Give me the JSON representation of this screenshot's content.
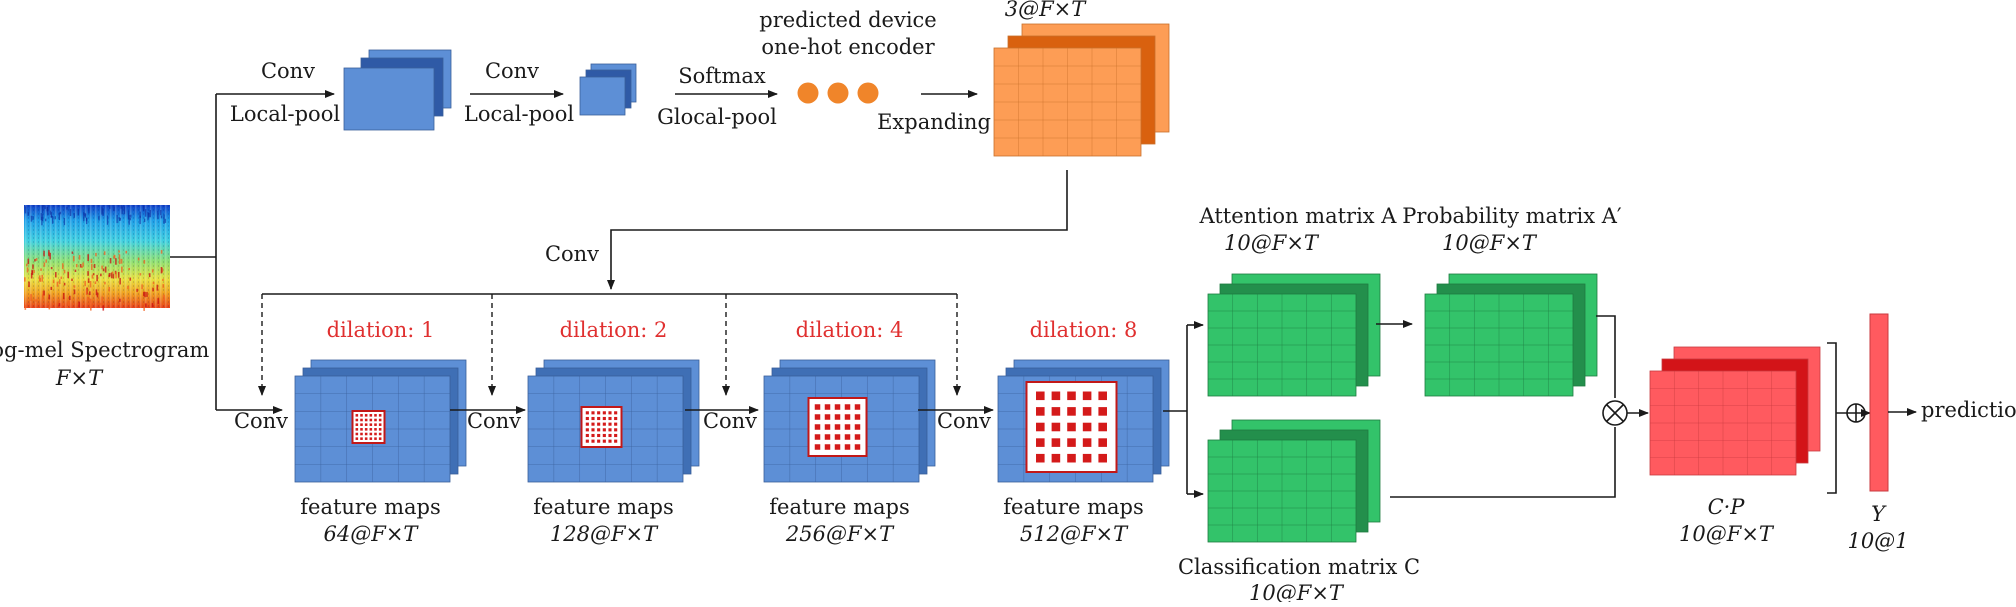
{
  "colors": {
    "blue": "#5d8fd6",
    "blue_dark": "#3f6fb5",
    "orange": "#fd9d55",
    "orange_dark": "#d9610f",
    "green": "#33c36a",
    "green_dark": "#238f4c",
    "red": "#ff5a5f",
    "red_dark": "#d31418",
    "dilation_text": "#e03030"
  },
  "input": {
    "label": "log-mel Spectrogram",
    "dims": "F×T"
  },
  "top_branch": {
    "conv1": "Conv",
    "pool1": "Local-pool",
    "conv2": "Conv",
    "pool2": "Local-pool",
    "softmax": "Softmax",
    "glocal": "Glocal-pool",
    "device_line1": "predicted device",
    "device_line2": "one-hot encoder",
    "expanding": "Expanding",
    "orange_dims": "3@F×T",
    "conv_down": "Conv"
  },
  "stages": [
    {
      "conv": "Conv",
      "dilation": "dilation: 1",
      "caption": "feature maps",
      "dims": "64@F×T"
    },
    {
      "conv": "Conv",
      "dilation": "dilation: 2",
      "caption": "feature maps",
      "dims": "128@F×T"
    },
    {
      "conv": "Conv",
      "dilation": "dilation: 4",
      "caption": "feature maps",
      "dims": "256@F×T"
    },
    {
      "conv": "Conv",
      "dilation": "dilation: 8",
      "caption": "feature maps",
      "dims": "512@F×T"
    }
  ],
  "attention": {
    "label": "Attention matrix A",
    "dims": "10@F×T"
  },
  "probability": {
    "label": "Probability matrix A′",
    "dims": "10@F×T"
  },
  "classification": {
    "label": "Classification matrix C",
    "dims": "10@F×T"
  },
  "product": {
    "label": "C·P",
    "dims": "10@F×T"
  },
  "output": {
    "label": "Y",
    "dims": "10@1",
    "prediction": "prediction"
  },
  "ops": {
    "multiply": "⊗",
    "add": "⊕"
  }
}
